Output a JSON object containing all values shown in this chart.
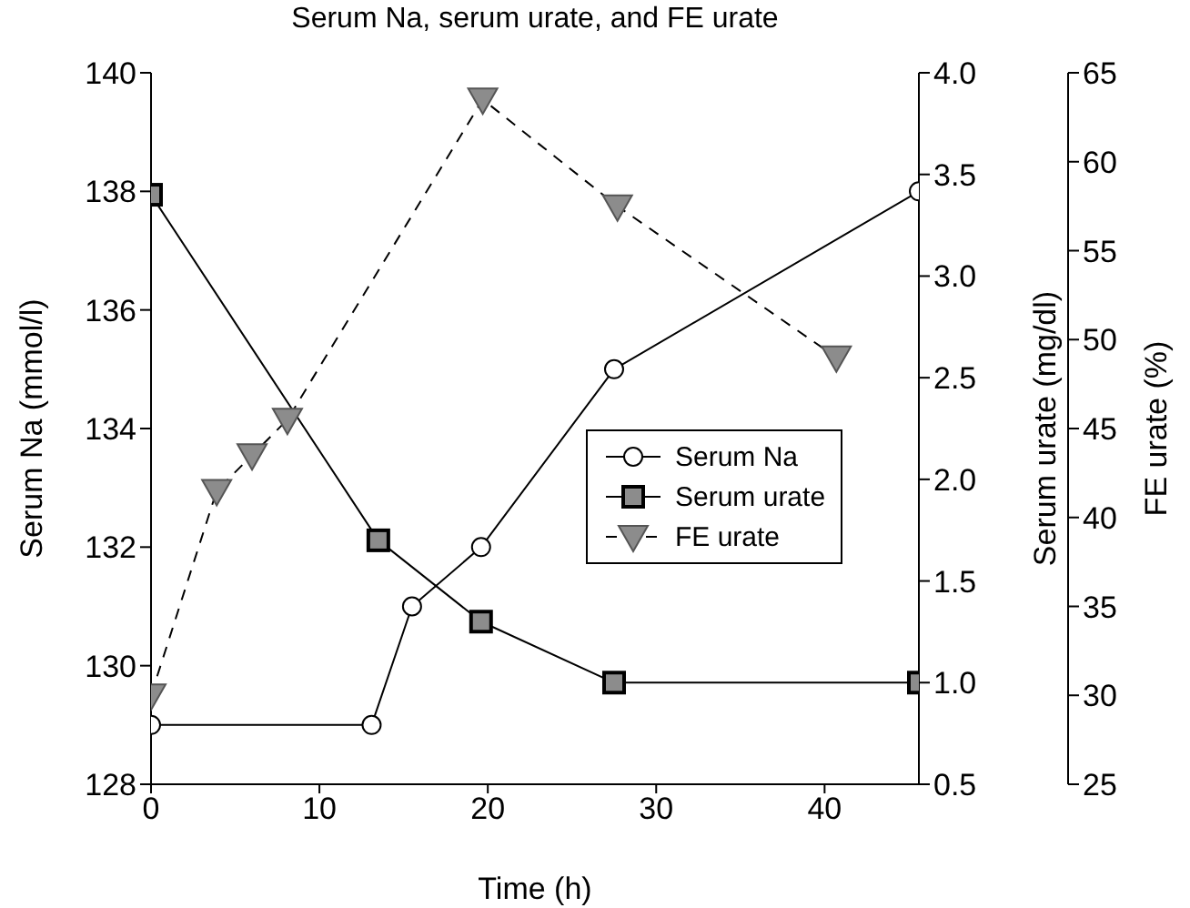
{
  "chart_data": {
    "type": "line",
    "title": "Serum Na, serum urate, and FE urate",
    "xlabel": "Time (h)",
    "ylabel": "Serum Na (mmol/l)",
    "y2label": "Serum urate (mg/dl)",
    "y3label": "FE urate (%)",
    "xlim": [
      0,
      45.6
    ],
    "xticks": [
      0,
      10,
      20,
      30,
      40
    ],
    "ylim": [
      128,
      140
    ],
    "yticks": [
      128,
      130,
      132,
      134,
      136,
      138,
      140
    ],
    "y2lim": [
      0.5,
      4.0
    ],
    "y2ticks": [
      {
        "value": 0.5,
        "label": "0.5"
      },
      {
        "value": 1,
        "label": "1.0"
      },
      {
        "value": 1.5,
        "label": "1.5"
      },
      {
        "value": 2,
        "label": "2.0"
      },
      {
        "value": 2.5,
        "label": "2.5"
      },
      {
        "value": 3,
        "label": "3.0"
      },
      {
        "value": 3.5,
        "label": "3.5"
      },
      {
        "value": 4,
        "label": "4.0"
      }
    ],
    "y3lim": [
      25,
      65
    ],
    "y3ticks": [
      25,
      30,
      35,
      40,
      45,
      50,
      55,
      60,
      65
    ],
    "grid": false,
    "legend": "center right",
    "series": [
      {
        "name": "Serum Na",
        "color": "#000000",
        "marker": "circle",
        "line_style": "solid",
        "x": [
          0,
          13.1,
          15.5,
          19.6,
          27.5,
          45.6
        ],
        "values": [
          129,
          129,
          131,
          132,
          135,
          138
        ]
      },
      {
        "name": "Serum urate",
        "color": "#000000",
        "marker": "square",
        "line_style": "solid",
        "axis": "y2",
        "x": [
          0,
          13.5,
          19.6,
          27.5,
          45.6
        ],
        "values": [
          3.4,
          1.7,
          1.3,
          1.0,
          1.0
        ]
      },
      {
        "name": "FE urate",
        "color": "#000000",
        "marker": "triangle",
        "line_style": "dashed",
        "axis": "y3",
        "x": [
          0,
          3.9,
          6.0,
          8.1,
          19.7,
          27.7,
          40.7
        ],
        "values": [
          30,
          41.5,
          43.5,
          45.5,
          63.5,
          57.5,
          49
        ]
      }
    ]
  }
}
